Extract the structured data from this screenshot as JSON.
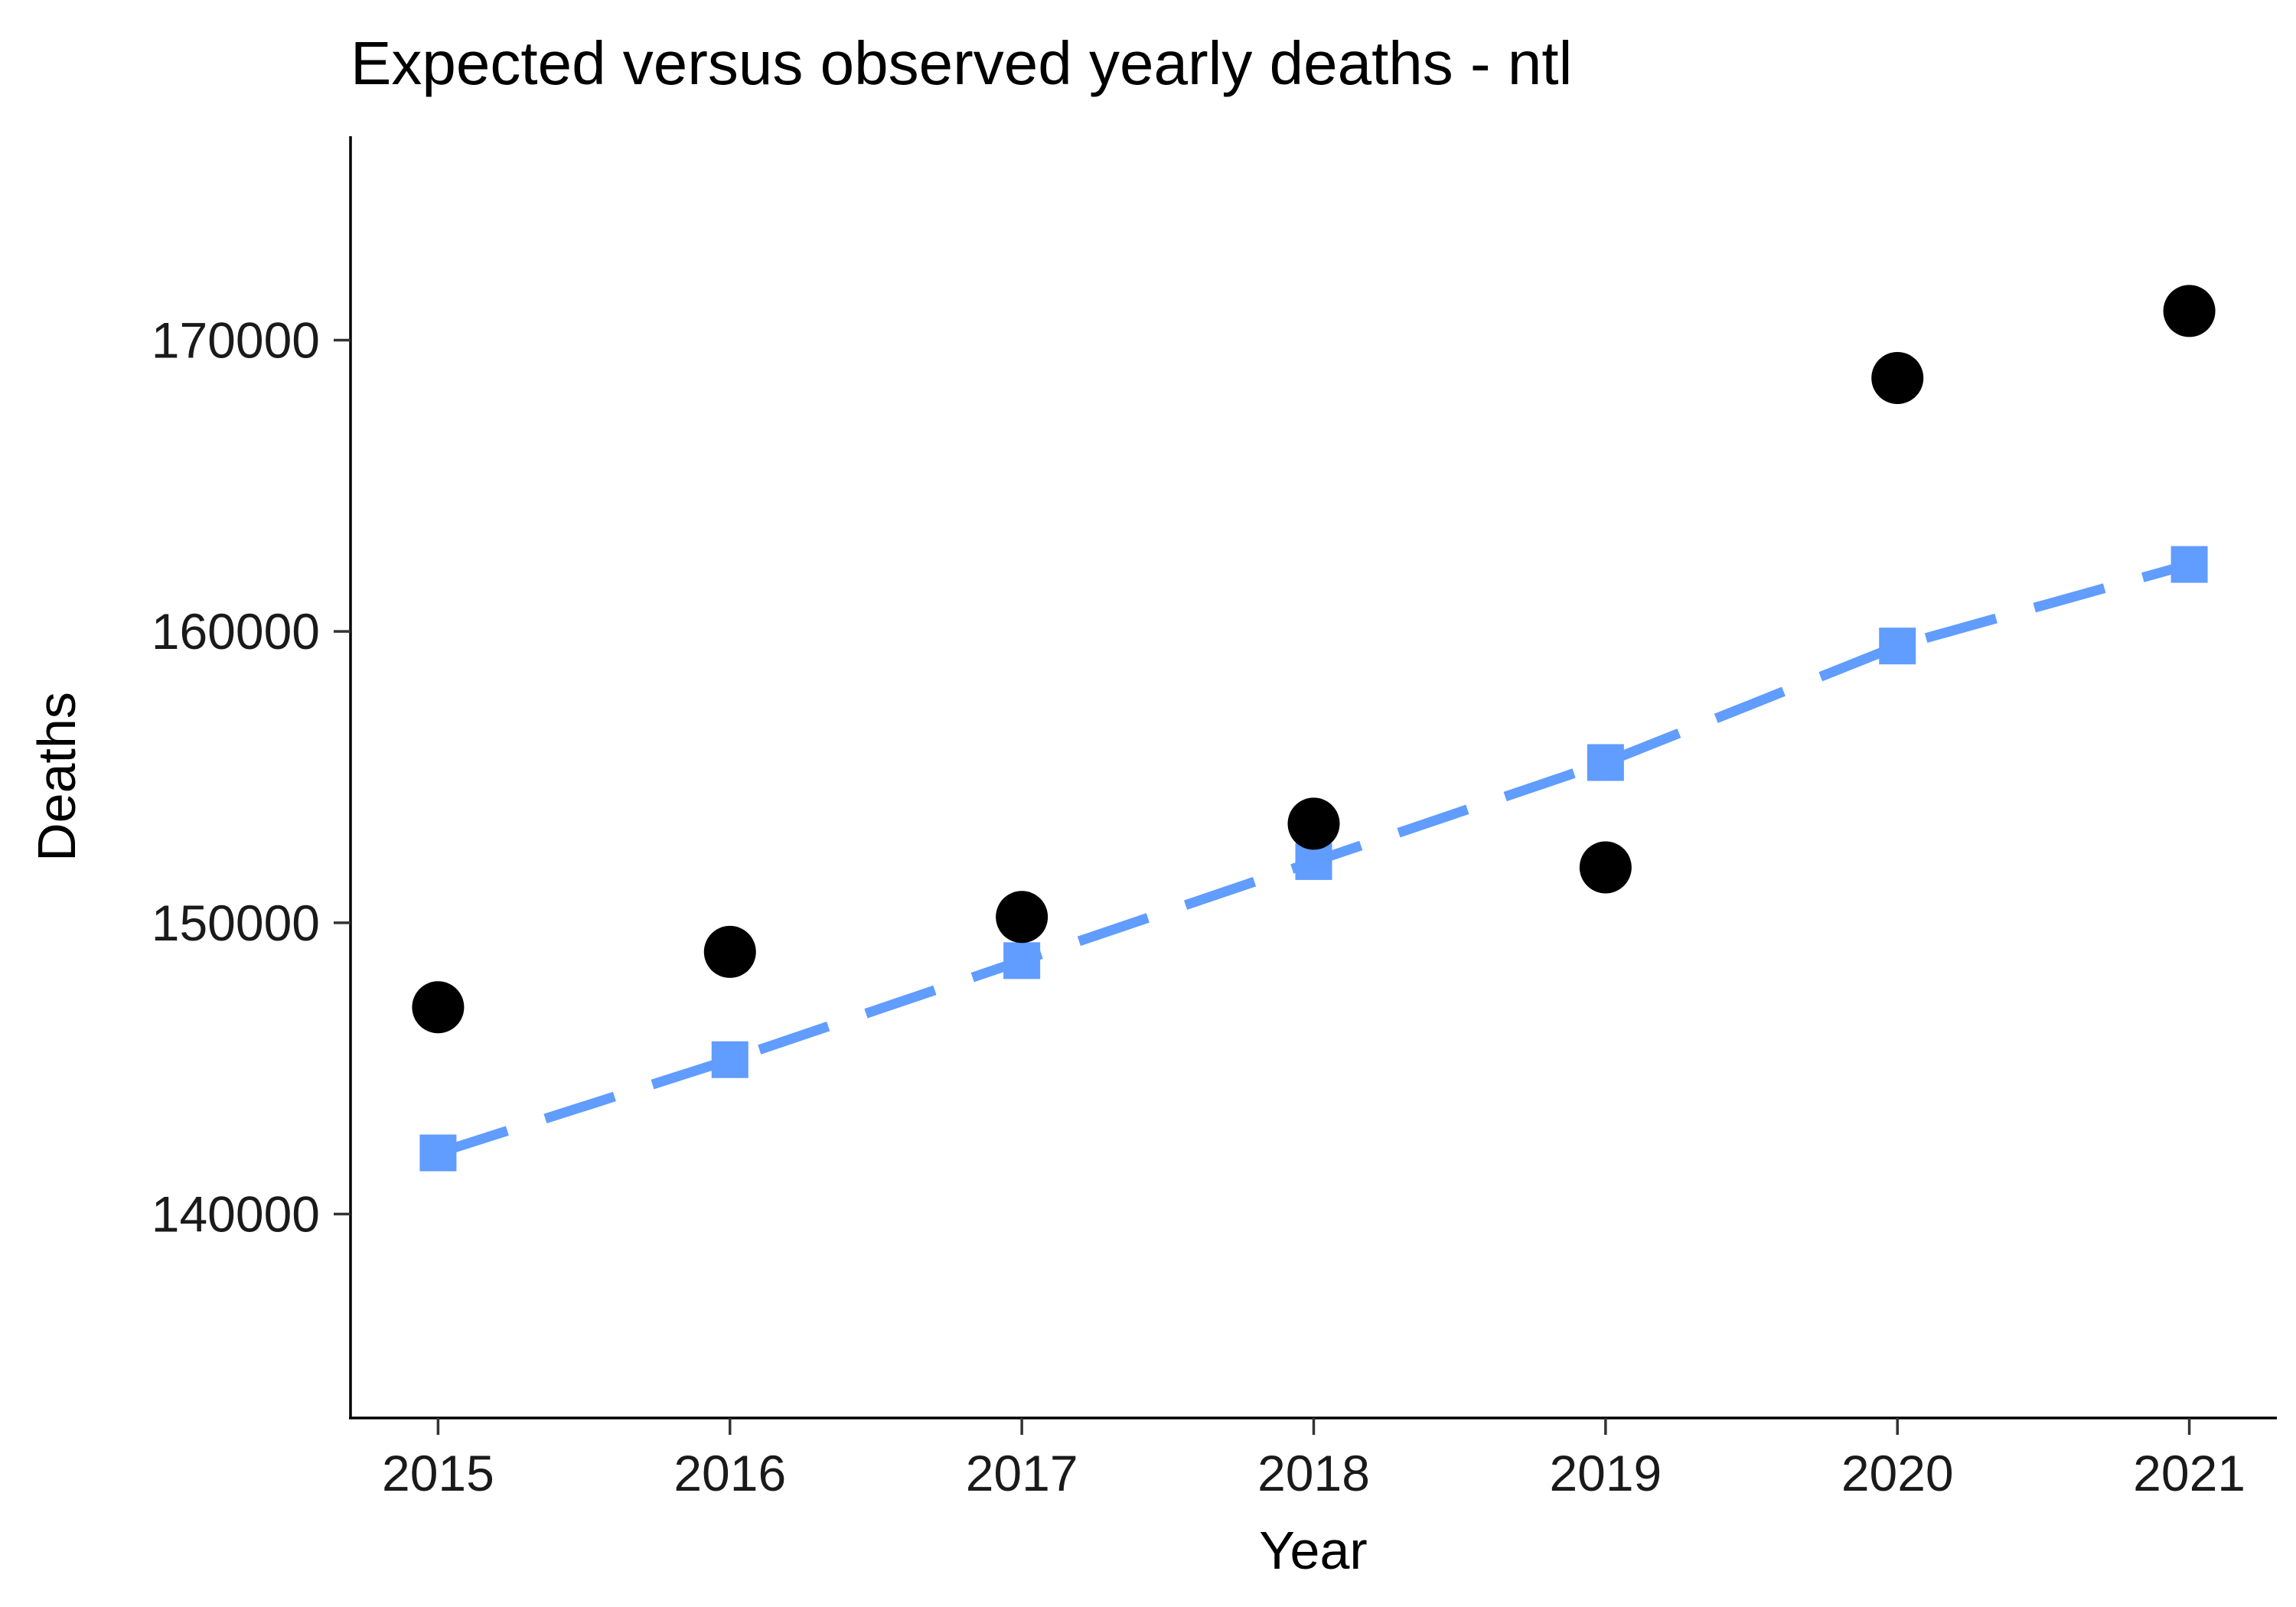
{
  "chart_data": {
    "type": "scatter",
    "title": "Expected versus observed yearly deaths - ntl",
    "xlabel": "Year",
    "ylabel": "Deaths",
    "x": [
      2015,
      2016,
      2017,
      2018,
      2019,
      2020,
      2021
    ],
    "x_ticks": [
      "2015",
      "2016",
      "2017",
      "2018",
      "2019",
      "2020",
      "2021"
    ],
    "y_ticks": [
      140000,
      150000,
      160000,
      170000
    ],
    "y_tick_labels": [
      "140000",
      "150000",
      "160000",
      "170000"
    ],
    "ylim": [
      133000,
      177000
    ],
    "xlim": [
      2014.7,
      2021.3
    ],
    "grid": false,
    "legend": "none",
    "series": [
      {
        "kind": "observed",
        "mark": "circle",
        "color": "#000000",
        "values": [
          147100,
          149000,
          150200,
          153400,
          151900,
          168700,
          171000
        ]
      },
      {
        "kind": "expected",
        "mark": "square",
        "line": "dashed",
        "color": "#619CFF",
        "values": [
          142100,
          145300,
          148700,
          152100,
          155500,
          159500,
          162300
        ]
      }
    ]
  }
}
